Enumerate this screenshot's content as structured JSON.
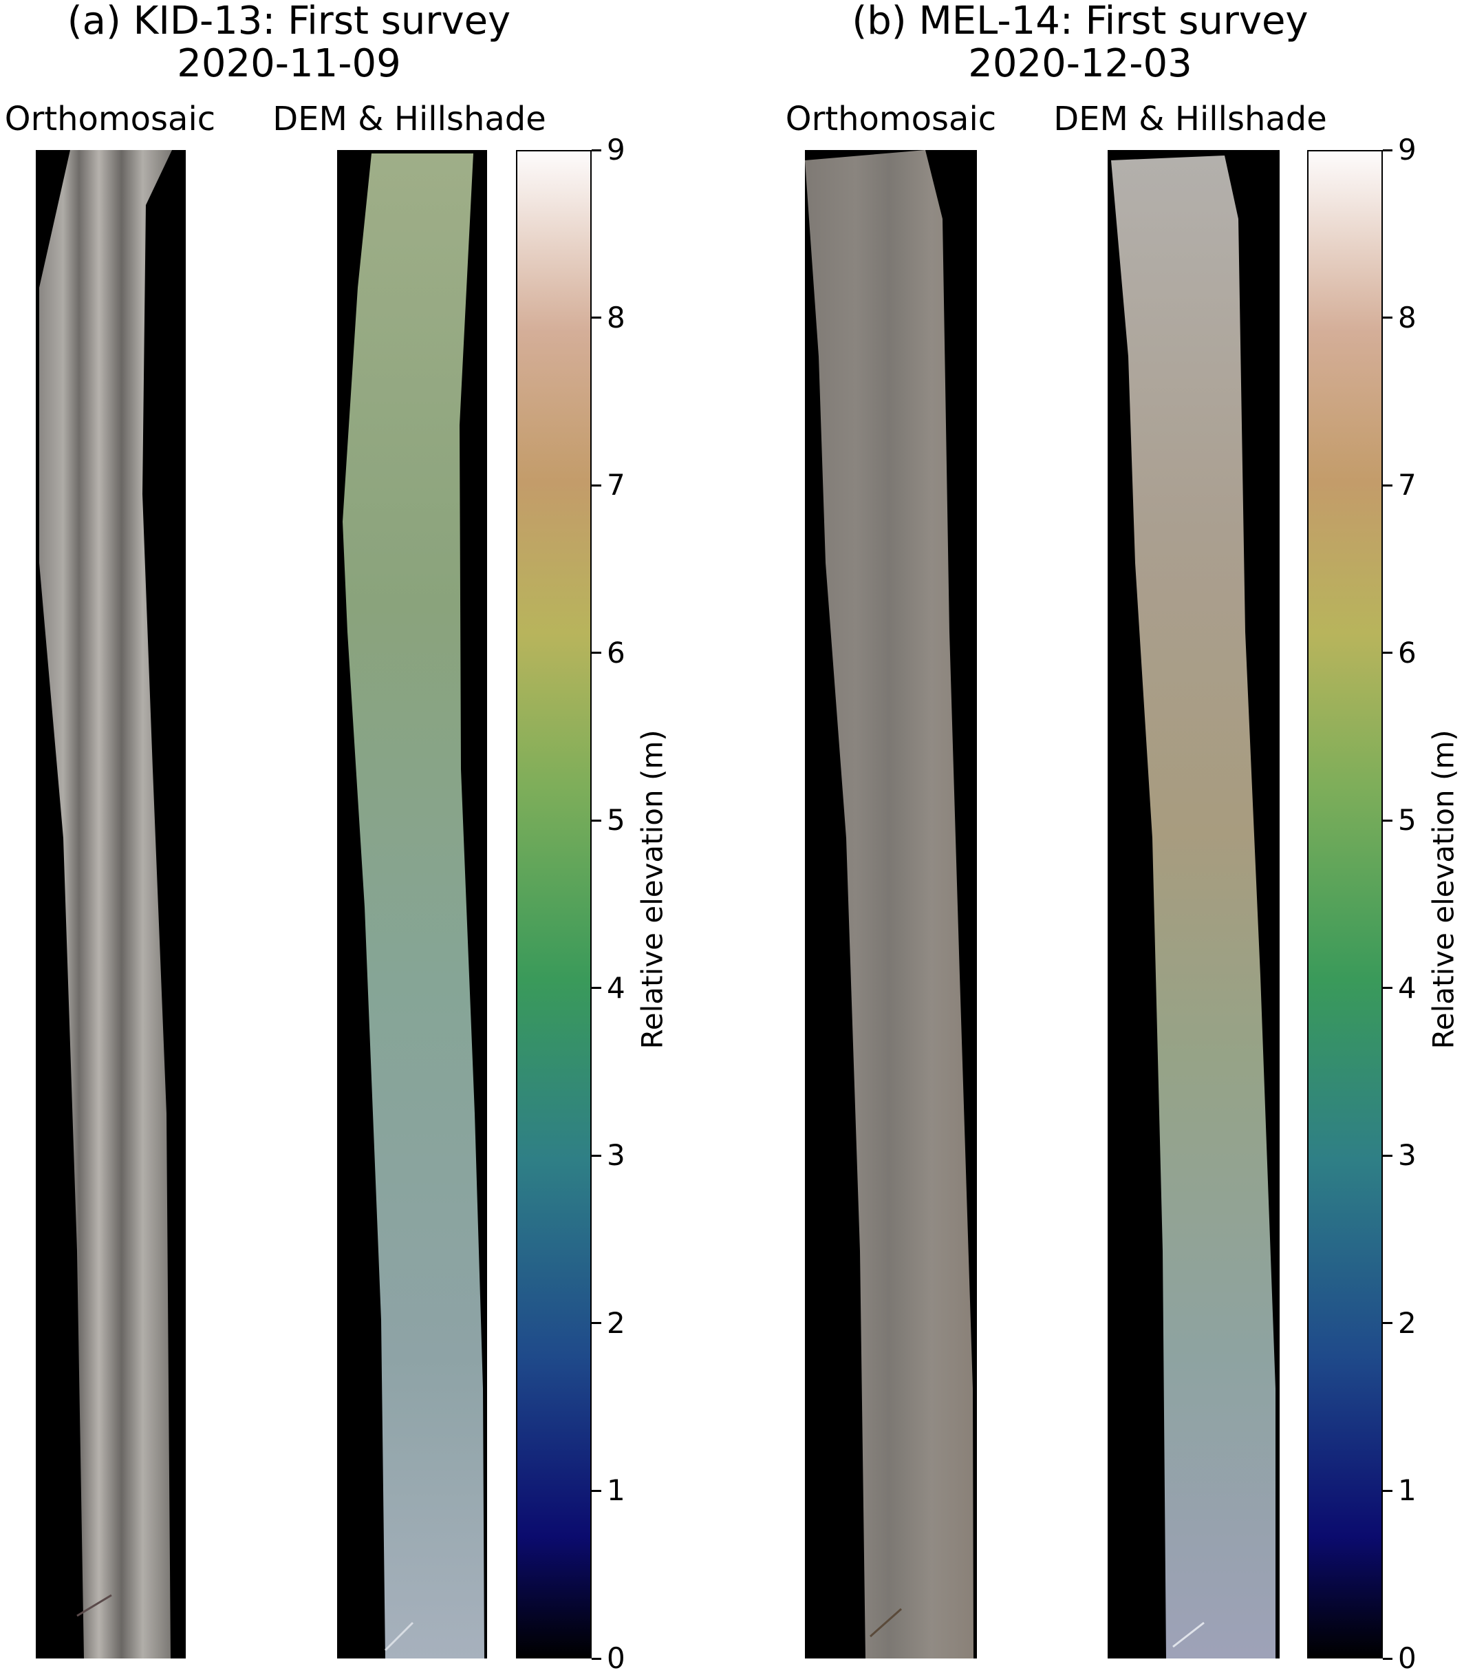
{
  "panels": [
    {
      "title_line1": "(a) KID-13: First survey",
      "title_line2": "2020-11-09",
      "ortho_label": "Orthomosaic",
      "dem_label": "DEM & Hillshade"
    },
    {
      "title_line1": "(b) MEL-14: First survey",
      "title_line2": "2020-12-03",
      "ortho_label": "Orthomosaic",
      "dem_label": "DEM & Hillshade"
    }
  ],
  "colorbar": {
    "label": "Relative elevation (m)",
    "min": 0,
    "max": 9,
    "ticks": [
      "0",
      "1",
      "2",
      "3",
      "4",
      "5",
      "6",
      "7",
      "8",
      "9"
    ],
    "colormap": "gist_earth",
    "colors": [
      "#000000",
      "#0b0b6e",
      "#1f4a8a",
      "#2f7f86",
      "#3a9a5a",
      "#7fae5a",
      "#b8b45c",
      "#c39c6a",
      "#d4ae98",
      "#fdfbfb"
    ]
  }
}
